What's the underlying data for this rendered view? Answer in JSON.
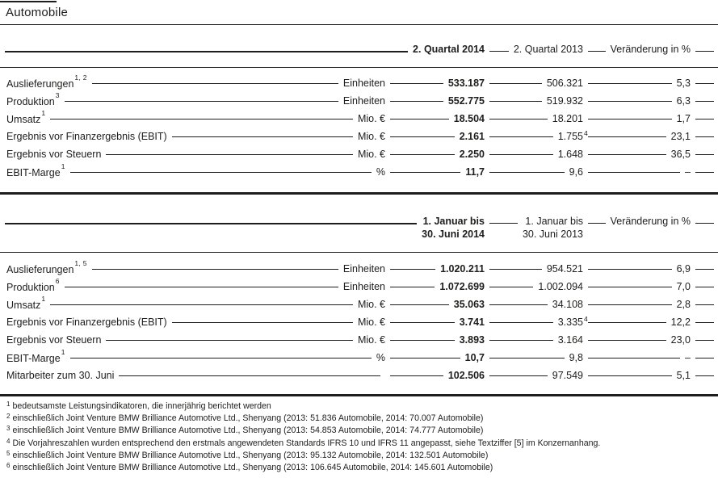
{
  "page_title": "Automobile",
  "tables": [
    {
      "columns": {
        "col2014": [
          "2. Quartal 2014"
        ],
        "col2013": [
          "2. Quartal 2013"
        ],
        "change": [
          "Veränderung in %"
        ]
      },
      "rows": [
        {
          "label": "Auslieferungen",
          "label_sup": "1, 2",
          "unit": "Einheiten",
          "v2014": "533.187",
          "v2013": "506.321",
          "v2013_sup": "",
          "change": "5,3"
        },
        {
          "label": "Produktion",
          "label_sup": "3",
          "unit": "Einheiten",
          "v2014": "552.775",
          "v2013": "519.932",
          "v2013_sup": "",
          "change": "6,3"
        },
        {
          "label": "Umsatz",
          "label_sup": "1",
          "unit": "Mio. €",
          "v2014": "18.504",
          "v2013": "18.201",
          "v2013_sup": "",
          "change": "1,7"
        },
        {
          "label": "Ergebnis vor Finanzergebnis (EBIT)",
          "label_sup": "",
          "unit": "Mio. €",
          "v2014": "2.161",
          "v2013": "1.755",
          "v2013_sup": "4",
          "change": "23,1"
        },
        {
          "label": "Ergebnis vor Steuern",
          "label_sup": "",
          "unit": "Mio. €",
          "v2014": "2.250",
          "v2013": "1.648",
          "v2013_sup": "",
          "change": "36,5"
        },
        {
          "label": "EBIT-Marge",
          "label_sup": "1",
          "unit": "%",
          "v2014": "11,7",
          "v2013": "9,6",
          "v2013_sup": "",
          "change": "–"
        }
      ]
    },
    {
      "columns": {
        "col2014": [
          "1. Januar bis",
          "30. Juni 2014"
        ],
        "col2013": [
          "1. Januar bis",
          "30. Juni 2013"
        ],
        "change": [
          "Veränderung in %"
        ]
      },
      "rows": [
        {
          "label": "Auslieferungen",
          "label_sup": "1, 5",
          "unit": "Einheiten",
          "v2014": "1.020.211",
          "v2013": "954.521",
          "v2013_sup": "",
          "change": "6,9"
        },
        {
          "label": "Produktion",
          "label_sup": "6",
          "unit": "Einheiten",
          "v2014": "1.072.699",
          "v2013": "1.002.094",
          "v2013_sup": "",
          "change": "7,0"
        },
        {
          "label": "Umsatz",
          "label_sup": "1",
          "unit": "Mio. €",
          "v2014": "35.063",
          "v2013": "34.108",
          "v2013_sup": "",
          "change": "2,8"
        },
        {
          "label": "Ergebnis vor Finanzergebnis (EBIT)",
          "label_sup": "",
          "unit": "Mio. €",
          "v2014": "3.741",
          "v2013": "3.335",
          "v2013_sup": "4",
          "change": "12,2"
        },
        {
          "label": "Ergebnis vor Steuern",
          "label_sup": "",
          "unit": "Mio. €",
          "v2014": "3.893",
          "v2013": "3.164",
          "v2013_sup": "",
          "change": "23,0"
        },
        {
          "label": "EBIT-Marge",
          "label_sup": "1",
          "unit": "%",
          "v2014": "10,7",
          "v2013": "9,8",
          "v2013_sup": "",
          "change": "–"
        },
        {
          "label": "Mitarbeiter zum 30. Juni",
          "label_sup": "",
          "unit": "",
          "v2014": "102.506",
          "v2013": "97.549",
          "v2013_sup": "",
          "change": "5,1"
        }
      ]
    }
  ],
  "footnotes": [
    {
      "sup": "1",
      "text": "bedeutsamste Leistungsindikatoren, die innerjährig berichtet werden"
    },
    {
      "sup": "2",
      "text": "einschließlich Joint Venture BMW Brilliance Automotive Ltd., Shenyang (2013: 51.836 Automobile, 2014: 70.007 Automobile)"
    },
    {
      "sup": "3",
      "text": "einschließlich Joint Venture BMW Brilliance Automotive Ltd., Shenyang (2013: 54.853 Automobile, 2014: 74.777 Automobile)"
    },
    {
      "sup": "4",
      "text": "Die Vorjahreszahlen wurden entsprechend den erstmals angewendeten Standards IFRS 10 und IFRS 11 angepasst, siehe Textziffer [5] im Konzernanhang."
    },
    {
      "sup": "5",
      "text": "einschließlich Joint Venture BMW Brilliance Automotive Ltd., Shenyang (2013: 95.132 Automobile, 2014: 132.501 Automobile)"
    },
    {
      "sup": "6",
      "text": "einschließlich Joint Venture BMW Brilliance Automotive Ltd., Shenyang (2013: 106.645 Automobile, 2014: 145.601 Automobile)"
    }
  ],
  "colors": {
    "text": "#1d1d1b",
    "rule": "#1d1d1b"
  }
}
